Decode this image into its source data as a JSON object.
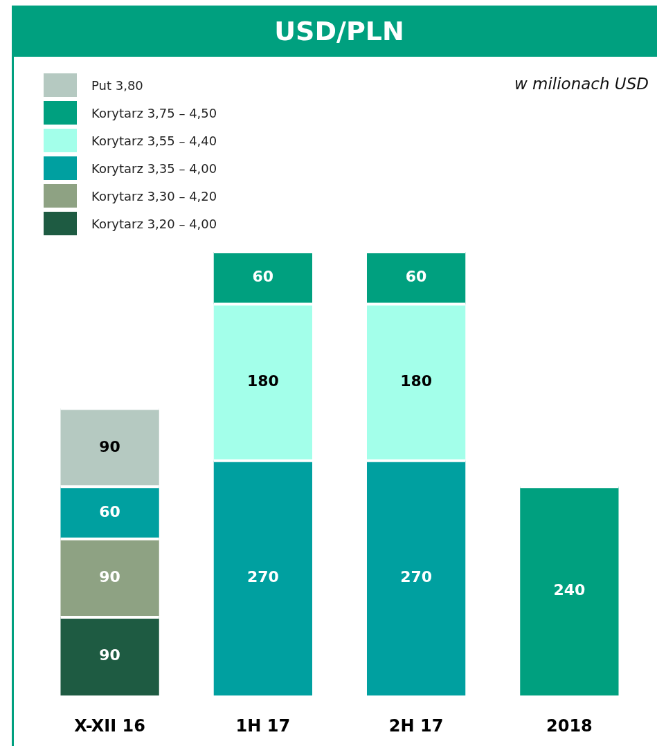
{
  "chart_data": {
    "type": "bar",
    "title": "USD/PLN",
    "annotations": [
      "w milionach USD"
    ],
    "categories": [
      "X-XII 16",
      "1H 17",
      "2H 17",
      "2018"
    ],
    "stacked": true,
    "series": [
      {
        "name": "Korytarz 3,20 – 4,00",
        "color": "#1e5b42",
        "values": [
          90,
          null,
          null,
          null
        ]
      },
      {
        "name": "Korytarz 3,30 – 4,20",
        "color": "#8ea283",
        "values": [
          90,
          null,
          null,
          null
        ]
      },
      {
        "name": "Korytarz 3,35 – 4,00",
        "color": "#00a0a0",
        "values": [
          60,
          270,
          270,
          null
        ]
      },
      {
        "name": "Korytarz 3,55 – 4,40",
        "color": "#a3ffea",
        "values": [
          null,
          180,
          180,
          null
        ]
      },
      {
        "name": "Korytarz 3,75 – 4,50",
        "color": "#00a07f",
        "values": [
          null,
          60,
          60,
          240
        ]
      },
      {
        "name": "Put 3,80",
        "color": "#b5c9c1",
        "values": [
          90,
          null,
          null,
          null
        ]
      }
    ],
    "data_labels": true,
    "legend": "top left",
    "tick_labels": "x",
    "grid": false
  }
}
